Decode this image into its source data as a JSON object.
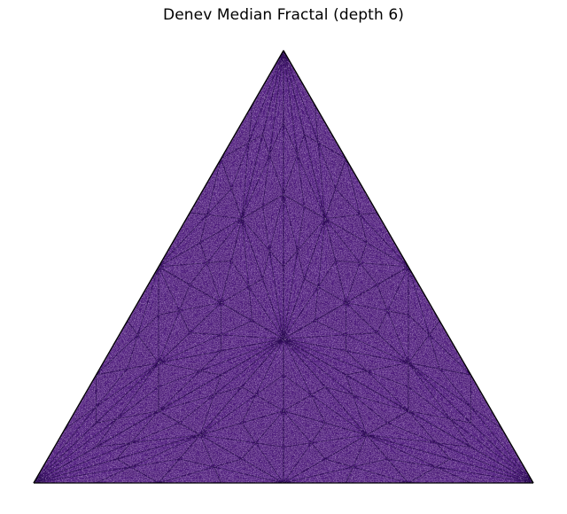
{
  "title": "Denev Median Fractal (depth 6)",
  "fractal": {
    "depth": 6,
    "colors": {
      "fill": "#3f1466",
      "line_dark": "#2a0a52",
      "line_mid": "#4b1a7a",
      "line_light": "#8a5fb0",
      "highlight": "#f3e6f7",
      "outline": "#000000"
    }
  }
}
